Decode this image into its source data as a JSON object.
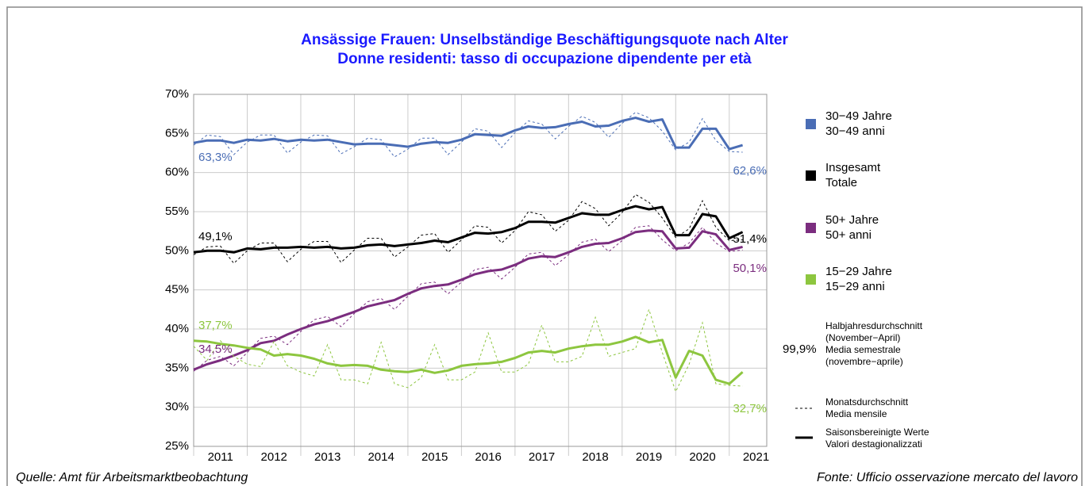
{
  "chart_data": {
    "type": "line",
    "title": "Ansässige Frauen: Unselbständige Beschäftigungsquote nach Alter",
    "subtitle": "Donne residenti: tasso di occupazione dipendente per età",
    "x": [
      2011,
      2011.25,
      2011.5,
      2011.75,
      2012,
      2012.25,
      2012.5,
      2012.75,
      2013,
      2013.25,
      2013.5,
      2013.75,
      2014,
      2014.25,
      2014.5,
      2014.75,
      2015,
      2015.25,
      2015.5,
      2015.75,
      2016,
      2016.25,
      2016.5,
      2016.75,
      2017,
      2017.25,
      2017.5,
      2017.75,
      2018,
      2018.25,
      2018.5,
      2018.75,
      2019,
      2019.25,
      2019.5,
      2019.75,
      2020,
      2020.25,
      2020.5,
      2020.75,
      2021,
      2021.25
    ],
    "xlim": [
      2011,
      2021.7
    ],
    "xticks": [
      2011,
      2012,
      2013,
      2014,
      2015,
      2016,
      2017,
      2018,
      2019,
      2020,
      2021
    ],
    "ylim": [
      25,
      70
    ],
    "yticks": [
      {
        "value": 25,
        "label": "25%"
      },
      {
        "value": 30,
        "label": "30%"
      },
      {
        "value": 35,
        "label": "35%"
      },
      {
        "value": 40,
        "label": "40%"
      },
      {
        "value": 45,
        "label": "45%"
      },
      {
        "value": 50,
        "label": "50%"
      },
      {
        "value": 55,
        "label": "55%"
      },
      {
        "value": 60,
        "label": "60%"
      },
      {
        "value": 65,
        "label": "65%"
      },
      {
        "value": 70,
        "label": "70%"
      }
    ],
    "grid": true,
    "series": [
      {
        "name": "30−49 Jahre\n30−49 anni",
        "color": "#4a6db5",
        "values": [
          63.8,
          64.1,
          64.1,
          63.8,
          64.2,
          64.1,
          64.3,
          64.0,
          64.2,
          64.1,
          64.2,
          63.9,
          63.6,
          63.7,
          63.7,
          63.5,
          63.3,
          63.7,
          63.9,
          63.8,
          64.2,
          64.9,
          64.8,
          64.7,
          65.4,
          65.9,
          65.7,
          65.8,
          66.2,
          66.5,
          65.9,
          66.0,
          66.6,
          67.0,
          66.5,
          66.8,
          63.2,
          63.2,
          65.6,
          65.6,
          63.0,
          63.5
        ],
        "monthly_values": [
          63.5,
          64.8,
          64.6,
          62.3,
          63.9,
          64.8,
          64.8,
          62.5,
          63.9,
          64.8,
          64.7,
          62.4,
          63.3,
          64.4,
          64.2,
          62.0,
          63.0,
          64.4,
          64.4,
          62.3,
          63.9,
          65.6,
          65.3,
          63.2,
          65.1,
          66.6,
          66.2,
          64.3,
          65.9,
          67.2,
          66.4,
          64.5,
          66.3,
          67.7,
          67.0,
          65.3,
          62.9,
          63.9,
          66.9,
          64.1,
          62.7,
          62.6
        ]
      },
      {
        "name": "Insgesamt\nTotale",
        "color": "#000000",
        "values": [
          49.8,
          50.0,
          50.0,
          49.8,
          50.3,
          50.2,
          50.4,
          50.4,
          50.5,
          50.4,
          50.5,
          50.3,
          50.4,
          50.7,
          50.8,
          50.6,
          50.8,
          51.0,
          51.3,
          51.1,
          51.7,
          52.3,
          52.2,
          52.4,
          52.9,
          53.7,
          53.7,
          53.6,
          54.2,
          54.8,
          54.6,
          54.6,
          55.2,
          55.7,
          55.3,
          55.6,
          52.0,
          52.0,
          54.7,
          54.4,
          51.6,
          52.4
        ],
        "monthly_values": [
          49.5,
          50.5,
          50.6,
          48.4,
          50.0,
          51.0,
          51.0,
          48.6,
          50.2,
          51.2,
          51.2,
          48.5,
          50.1,
          51.6,
          51.6,
          49.2,
          50.5,
          52.0,
          52.2,
          49.8,
          51.4,
          53.2,
          53.0,
          51.0,
          52.6,
          55.0,
          54.6,
          52.5,
          53.9,
          56.3,
          55.4,
          53.2,
          54.9,
          57.2,
          56.2,
          54.2,
          51.7,
          52.8,
          56.4,
          53.0,
          51.3,
          51.4
        ]
      },
      {
        "name": "50+ Jahre\n50+ anni",
        "color": "#7b2d7f",
        "values": [
          34.8,
          35.5,
          36.0,
          36.6,
          37.3,
          38.2,
          38.5,
          39.3,
          40.0,
          40.6,
          41.0,
          41.6,
          42.2,
          42.9,
          43.3,
          43.7,
          44.5,
          45.2,
          45.5,
          45.7,
          46.3,
          47.0,
          47.4,
          47.6,
          48.2,
          49.0,
          49.3,
          49.2,
          49.8,
          50.5,
          50.9,
          51.0,
          51.6,
          52.4,
          52.6,
          52.5,
          50.3,
          50.4,
          52.5,
          52.1,
          50.1,
          50.5
        ],
        "monthly_values": [
          34.6,
          36.0,
          36.5,
          35.3,
          37.0,
          38.8,
          39.1,
          38.0,
          39.7,
          41.2,
          41.6,
          40.3,
          42.0,
          43.5,
          43.9,
          42.5,
          44.2,
          45.8,
          46.0,
          44.5,
          46.0,
          47.6,
          47.9,
          46.4,
          47.9,
          49.6,
          49.8,
          48.1,
          49.5,
          51.1,
          51.5,
          49.9,
          51.3,
          53.0,
          53.2,
          51.4,
          50.0,
          51.0,
          53.0,
          51.0,
          49.9,
          50.1
        ]
      },
      {
        "name": "15−29 Jahre\n15−29 anni",
        "color": "#8dc63f",
        "values": [
          38.5,
          38.4,
          38.1,
          37.9,
          37.6,
          37.4,
          36.6,
          36.8,
          36.6,
          36.2,
          35.6,
          35.3,
          35.4,
          35.3,
          34.8,
          34.6,
          34.5,
          34.8,
          34.4,
          34.7,
          35.3,
          35.5,
          35.6,
          35.8,
          36.3,
          37.0,
          37.2,
          37.0,
          37.5,
          37.8,
          38.0,
          38.0,
          38.4,
          39.0,
          38.3,
          38.6,
          33.8,
          37.2,
          36.6,
          33.5,
          33.0,
          34.5
        ],
        "monthly_values": [
          37.8,
          36.0,
          38.5,
          36.5,
          35.5,
          35.2,
          38.4,
          35.3,
          34.5,
          34.0,
          38.0,
          33.5,
          33.5,
          33.0,
          38.3,
          33.0,
          32.5,
          33.8,
          38.0,
          33.5,
          33.5,
          34.5,
          39.5,
          34.5,
          34.5,
          35.5,
          40.5,
          35.8,
          35.8,
          36.5,
          41.5,
          36.5,
          37.0,
          37.5,
          42.5,
          37.0,
          32.0,
          35.5,
          40.8,
          33.0,
          32.8,
          32.7
        ]
      }
    ],
    "annotations": [
      {
        "text": "63,3%",
        "series": 0
      },
      {
        "text": "62,6%",
        "series": 0
      },
      {
        "text": "49,1%",
        "series": 1
      },
      {
        "text": "51,4%",
        "series": 1
      },
      {
        "text": "34,5%",
        "series": 2
      },
      {
        "text": "50,1%",
        "series": 2
      },
      {
        "text": "37,7%",
        "series": 3
      },
      {
        "text": "32,7%",
        "series": 3
      }
    ],
    "legend_note_value": "99,9%",
    "legend_note": "Halbjahresdurchschnitt\n(November−April)\nMedia semestrale\n(novembre−aprile)",
    "line_legend": [
      "Monatsdurchschnitt\nMedia mensile",
      "Saisonsbereinigte Werte\nValori destagionalizzati"
    ],
    "source_left": "Quelle: Amt für Arbeitsmarktbeobachtung",
    "source_right": "Fonte: Ufficio osservazione mercato del lavoro"
  }
}
